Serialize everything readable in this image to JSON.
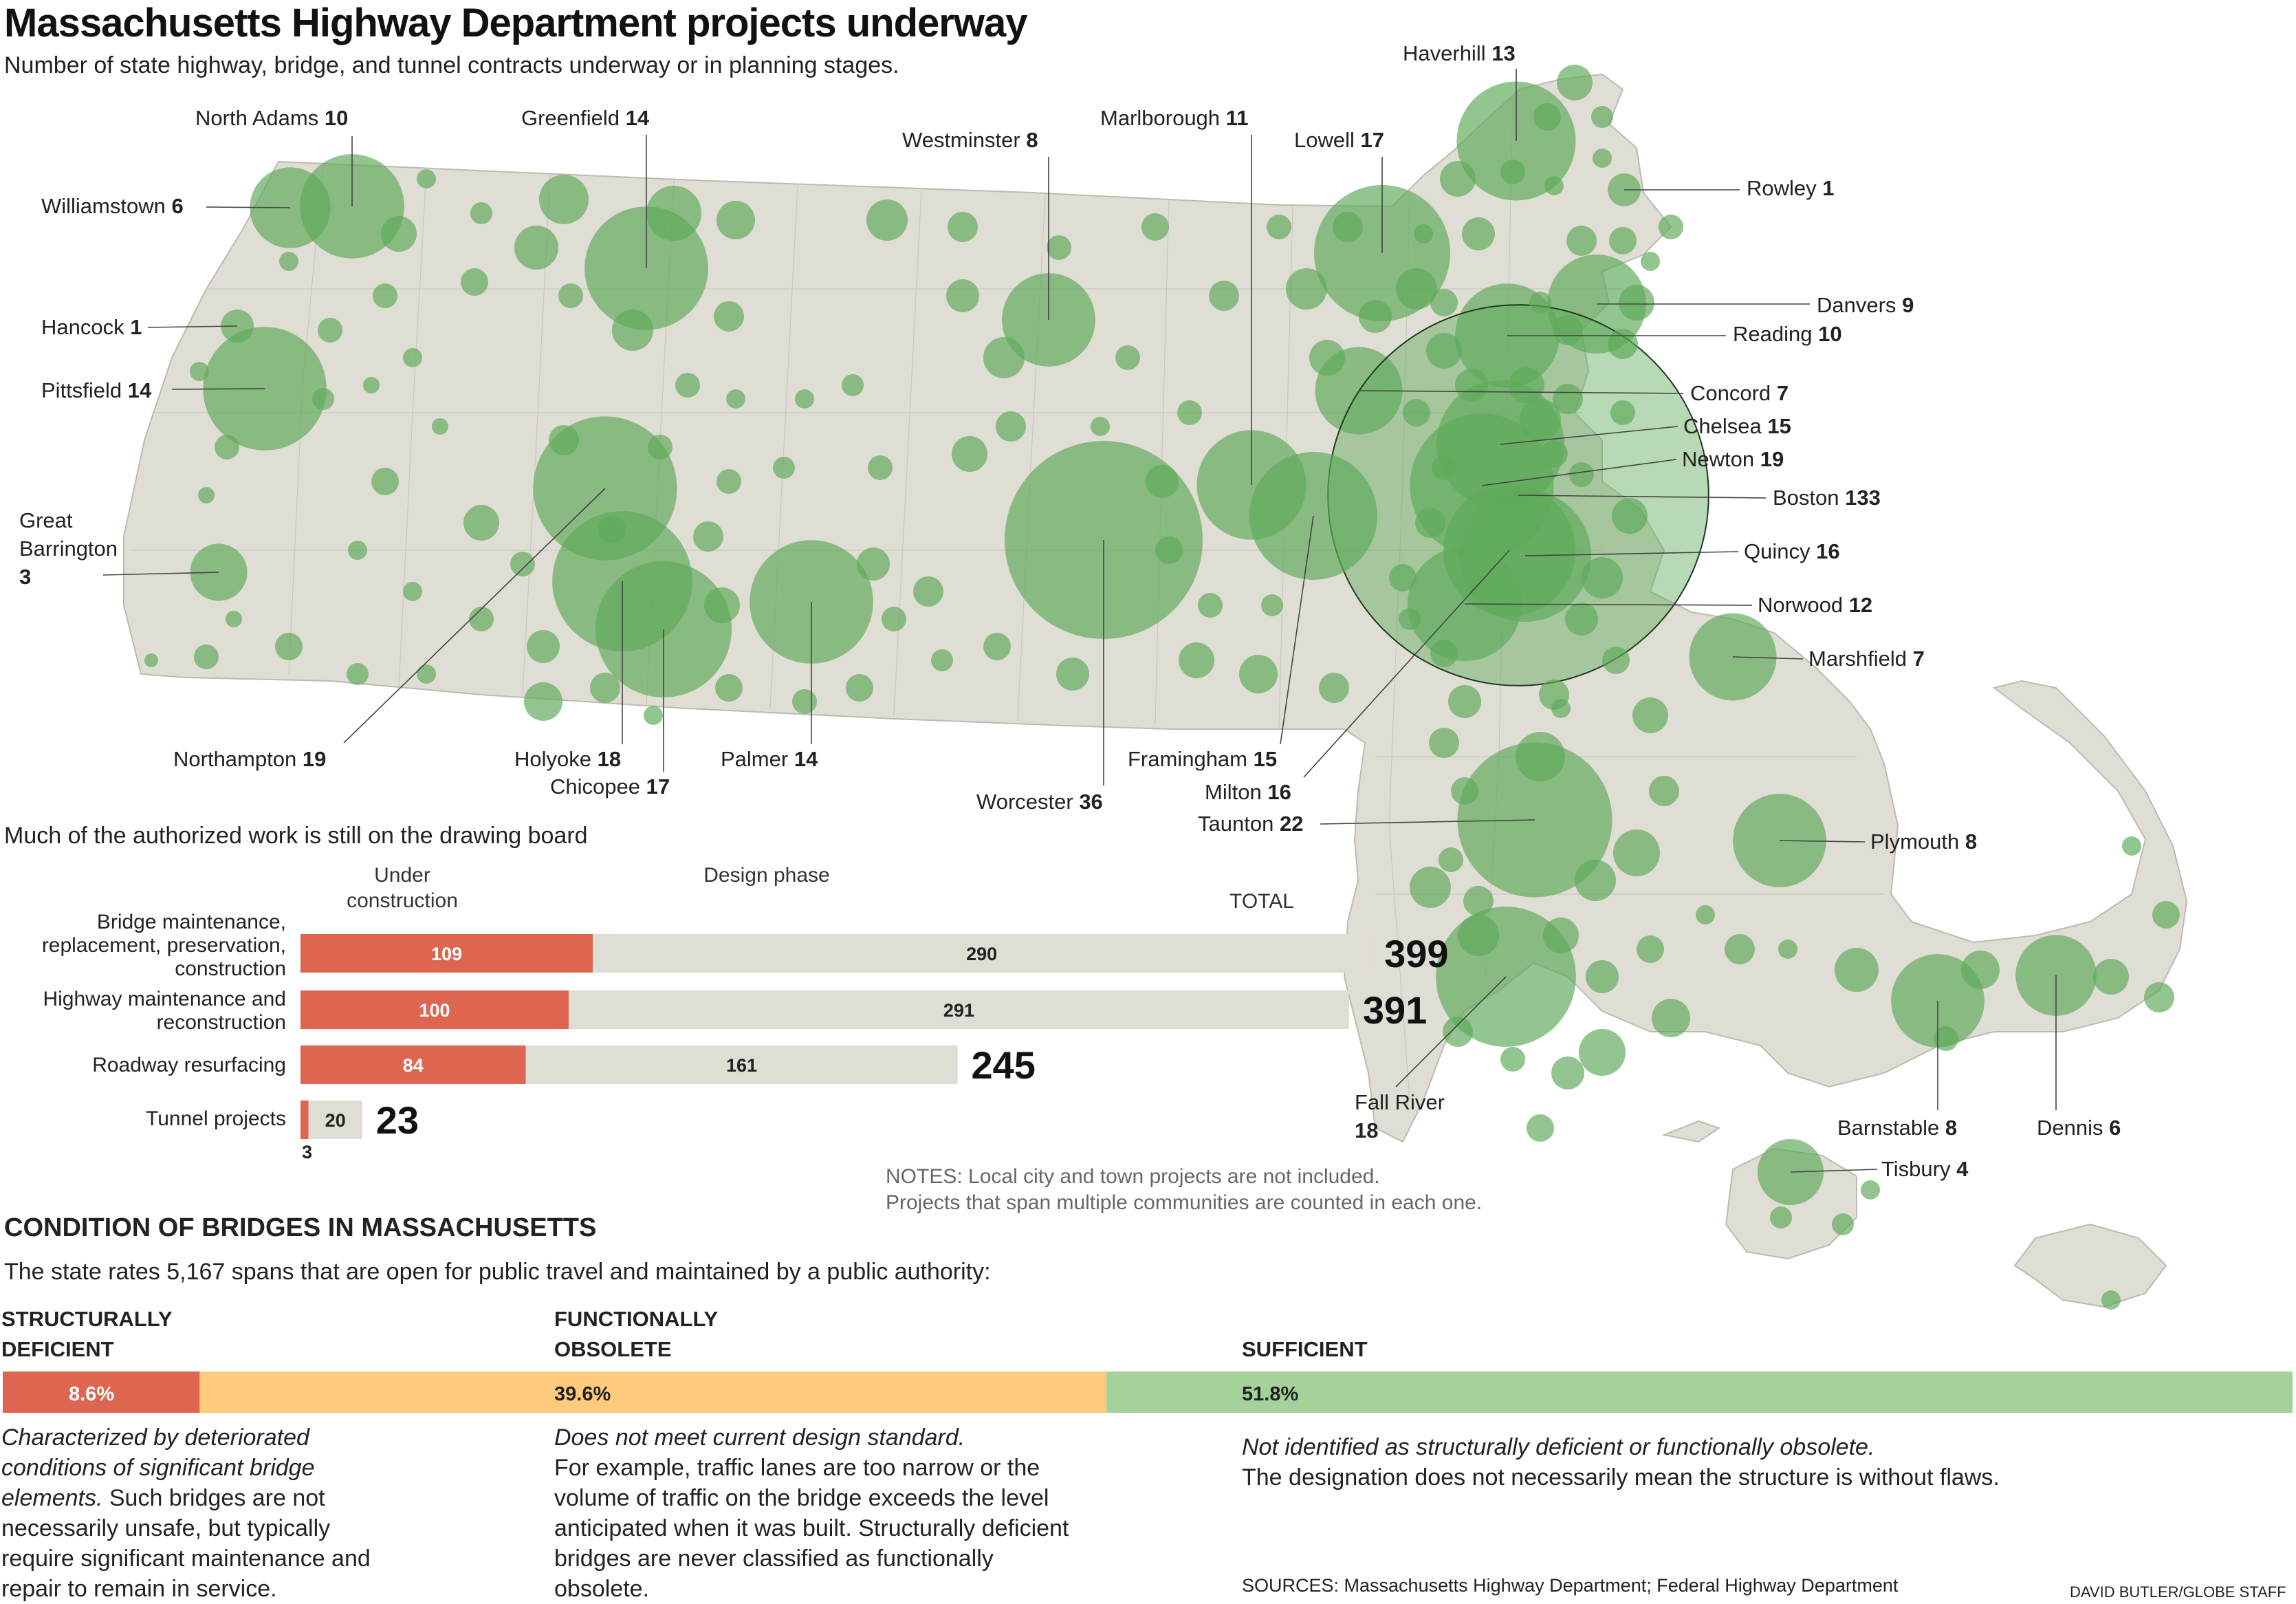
{
  "title": "Massachusetts Highway Department projects underway",
  "subtitle": "Number of state highway, bridge, and tunnel contracts underway or in planning stages.",
  "colors": {
    "circle": "#5faa5a",
    "map_land": "#e0ddd5",
    "under_construction": "#de6650",
    "design_phase": "#e0ddd5",
    "structurally_deficient": "#de6650",
    "functionally_obsolete": "#ffca7b",
    "sufficient": "#a5d19b"
  },
  "map_labels": [
    {
      "name": "North Adams",
      "value": "10"
    },
    {
      "name": "Greenfield",
      "value": "14"
    },
    {
      "name": "Westminster",
      "value": "8"
    },
    {
      "name": "Marlborough",
      "value": "11"
    },
    {
      "name": "Lowell",
      "value": "17"
    },
    {
      "name": "Haverhill",
      "value": "13"
    },
    {
      "name": "Williamstown",
      "value": "6"
    },
    {
      "name": "Rowley",
      "value": "1"
    },
    {
      "name": "Hancock",
      "value": "1"
    },
    {
      "name": "Danvers",
      "value": "9"
    },
    {
      "name": "Reading",
      "value": "10"
    },
    {
      "name": "Pittsfield",
      "value": "14"
    },
    {
      "name": "Concord",
      "value": "7"
    },
    {
      "name": "Chelsea",
      "value": "15"
    },
    {
      "name": "Newton",
      "value": "19"
    },
    {
      "name": "Boston",
      "value": "133"
    },
    {
      "name": "Quincy",
      "value": "16"
    },
    {
      "name": "Norwood",
      "value": "12"
    },
    {
      "name": "Marshfield",
      "value": "7"
    },
    {
      "name": "Northampton",
      "value": "19"
    },
    {
      "name": "Holyoke",
      "value": "18"
    },
    {
      "name": "Chicopee",
      "value": "17"
    },
    {
      "name": "Palmer",
      "value": "14"
    },
    {
      "name": "Worcester",
      "value": "36"
    },
    {
      "name": "Framingham",
      "value": "15"
    },
    {
      "name": "Milton",
      "value": "16"
    },
    {
      "name": "Taunton",
      "value": "22"
    },
    {
      "name": "Plymouth",
      "value": "8"
    },
    {
      "name": "Barnstable",
      "value": "8"
    },
    {
      "name": "Dennis",
      "value": "6"
    },
    {
      "name": "Tisbury",
      "value": "4"
    },
    {
      "name": "Great Barrington",
      "value": "3"
    },
    {
      "name": "Fall River",
      "value": "18"
    }
  ],
  "section2": {
    "heading": "Much of the authorized work is still on the drawing board",
    "col_under": "Under construction",
    "col_design": "Design phase",
    "col_total": "TOTAL",
    "notes": [
      "NOTES: Local city and town projects are not included.",
      "Projects that span multiple communities are counted in each one."
    ]
  },
  "chart_data": {
    "type": "bar",
    "orientation": "horizontal",
    "stacked": true,
    "categories": [
      "Bridge maintenance, replacement, preservation, construction",
      "Highway maintenance and reconstruction",
      "Roadway resurfacing",
      "Tunnel projects"
    ],
    "series": [
      {
        "name": "Under construction",
        "values": [
          109,
          100,
          84,
          3
        ]
      },
      {
        "name": "Design phase",
        "values": [
          290,
          291,
          161,
          20
        ]
      }
    ],
    "totals": [
      399,
      391,
      245,
      23
    ]
  },
  "bridges": {
    "heading": "CONDITION OF BRIDGES IN MASSACHUSETTS",
    "intro": "The state rates 5,167 spans that are open for public travel and maintained by a public authority:",
    "categories": [
      {
        "head1": "STRUCTURALLY",
        "head2": "DEFICIENT",
        "percent": 8.6,
        "label": "8.6%",
        "desc_italic": "Characterized by deteriorated conditions of significant bridge elements.",
        "desc": "Such bridges are not necessarily unsafe, but typically require significant maintenance and repair to remain in service."
      },
      {
        "head1": "FUNCTIONALLY",
        "head2": "OBSOLETE",
        "percent": 39.6,
        "label": "39.6%",
        "desc_italic": "Does not meet current design standard.",
        "desc": "For example, traffic lanes are too narrow or the volume of traffic on the bridge exceeds the level anticipated when it was built. Structurally deficient bridges are never classified as functionally obsolete."
      },
      {
        "head1": "",
        "head2": "SUFFICIENT",
        "percent": 51.8,
        "label": "51.8%",
        "desc_italic": "Not identified as structurally deficient or functionally obsolete.",
        "desc": "The designation does not necessarily mean the structure is without flaws."
      }
    ]
  },
  "sources": "SOURCES: Massachusetts Highway Department; Federal Highway Department",
  "credit": "DAVID BUTLER/GLOBE STAFF"
}
